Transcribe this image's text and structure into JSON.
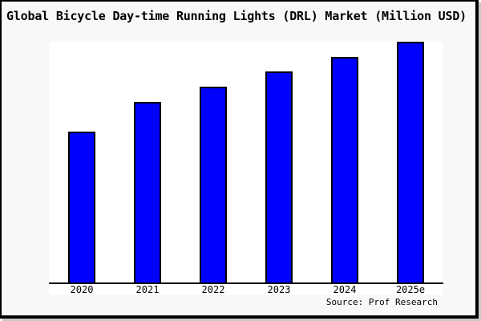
{
  "window": {
    "title": "Global Bicycle Day-time Running Lights (DRL) Market (Million USD)"
  },
  "source_note": "Source: Prof Research",
  "colors": {
    "bar_fill": "#0000ff",
    "bar_border": "#000000",
    "canvas_background": "#f8f8f6",
    "plot_background": "#ffffff",
    "axis": "#000000",
    "text": "#000000",
    "window_border": "#000000"
  },
  "chart_data": {
    "type": "bar",
    "title": "Global Bicycle Day-time Running Lights (DRL) Market (Million USD)",
    "categories": [
      "2020",
      "2021",
      "2022",
      "2023",
      "2024",
      "2025e"
    ],
    "values": [
      62.7,
      75.0,
      81.3,
      87.7,
      93.7,
      100.0
    ],
    "value_note": "No y-axis ticks, gridlines or data labels are shown in the image; values are bar heights relative to the tallest bar (2025e = 100)",
    "xlabel": "",
    "ylabel": "",
    "ylim": [
      0,
      100
    ],
    "grid": false,
    "legend": false,
    "bar_color": "#0000ff",
    "source": "Source: Prof Research"
  }
}
